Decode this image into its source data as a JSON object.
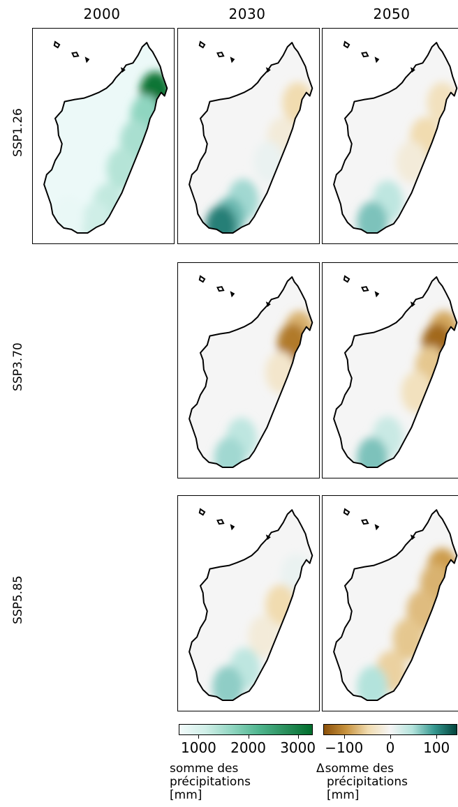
{
  "columns": [
    "2000",
    "2030",
    "2050"
  ],
  "rows": [
    "SSP1.26",
    "SSP3.70",
    "SSP5.85"
  ],
  "panels": [
    {
      "row": 0,
      "col": 0,
      "kind": "absolute",
      "hotspots": [
        {
          "lat": -15.55,
          "lon": 49.75,
          "level": 0.98
        },
        {
          "lat": -17.2,
          "lon": 49.2,
          "level": 0.55
        },
        {
          "lat": -19.0,
          "lon": 48.6,
          "level": 0.45
        },
        {
          "lat": -21.0,
          "lon": 47.8,
          "level": 0.4
        },
        {
          "lat": -23.5,
          "lon": 47.0,
          "level": 0.35
        },
        {
          "lat": -24.8,
          "lon": 46.3,
          "level": 0.3
        },
        {
          "lat": -24.4,
          "lon": 44.7,
          "level": 0.08
        }
      ]
    },
    {
      "row": 0,
      "col": 1,
      "kind": "delta",
      "hotspots": [
        {
          "lat": -16.3,
          "lon": 49.6,
          "level": -0.25
        },
        {
          "lat": -18.8,
          "lon": 48.7,
          "level": -0.1
        },
        {
          "lat": -20.5,
          "lon": 47.9,
          "level": 0.05
        },
        {
          "lat": -23.2,
          "lon": 46.4,
          "level": 0.35
        },
        {
          "lat": -24.5,
          "lon": 45.6,
          "level": 0.5
        },
        {
          "lat": -25.1,
          "lon": 45.1,
          "level": 0.75
        }
      ]
    },
    {
      "row": 0,
      "col": 2,
      "kind": "delta",
      "hotspots": [
        {
          "lat": -16.3,
          "lon": 49.6,
          "level": -0.2
        },
        {
          "lat": -18.8,
          "lon": 48.6,
          "level": -0.25
        },
        {
          "lat": -20.5,
          "lon": 47.8,
          "level": -0.1
        },
        {
          "lat": -23.3,
          "lon": 46.4,
          "level": 0.25
        },
        {
          "lat": -24.8,
          "lon": 45.5,
          "level": 0.45
        }
      ]
    },
    {
      "row": 1,
      "col": 1,
      "kind": "delta",
      "hotspots": [
        {
          "lat": -15.9,
          "lon": 49.7,
          "level": -0.45
        },
        {
          "lat": -16.8,
          "lon": 49.3,
          "level": -0.75
        },
        {
          "lat": -18.8,
          "lon": 48.6,
          "level": -0.15
        },
        {
          "lat": -23.5,
          "lon": 46.3,
          "level": 0.25
        },
        {
          "lat": -24.9,
          "lon": 45.6,
          "level": 0.35
        }
      ]
    },
    {
      "row": 1,
      "col": 2,
      "kind": "delta",
      "hotspots": [
        {
          "lat": -15.9,
          "lon": 49.7,
          "level": -0.5
        },
        {
          "lat": -16.8,
          "lon": 49.3,
          "level": -0.85
        },
        {
          "lat": -18.4,
          "lon": 48.9,
          "level": -0.35
        },
        {
          "lat": -20.2,
          "lon": 48.1,
          "level": -0.2
        },
        {
          "lat": -23.4,
          "lon": 46.4,
          "level": 0.2
        },
        {
          "lat": -24.9,
          "lon": 45.5,
          "level": 0.45
        }
      ]
    },
    {
      "row": 2,
      "col": 1,
      "kind": "delta",
      "hotspots": [
        {
          "lat": -16.6,
          "lon": 49.5,
          "level": 0.05
        },
        {
          "lat": -18.8,
          "lon": 48.6,
          "level": -0.25
        },
        {
          "lat": -21.0,
          "lon": 47.6,
          "level": -0.1
        },
        {
          "lat": -23.3,
          "lon": 46.5,
          "level": 0.25
        },
        {
          "lat": -24.6,
          "lon": 45.5,
          "level": 0.4
        }
      ]
    },
    {
      "row": 2,
      "col": 2,
      "kind": "delta",
      "hotspots": [
        {
          "lat": -16.2,
          "lon": 49.6,
          "level": -0.55
        },
        {
          "lat": -17.3,
          "lon": 49.2,
          "level": -0.45
        },
        {
          "lat": -19.2,
          "lon": 48.4,
          "level": -0.4
        },
        {
          "lat": -21.2,
          "lon": 47.6,
          "level": -0.35
        },
        {
          "lat": -23.5,
          "lon": 46.6,
          "level": -0.3
        },
        {
          "lat": -24.6,
          "lon": 45.5,
          "level": 0.3
        }
      ]
    }
  ],
  "colorbars": {
    "absolute": {
      "ticks": [
        "1000",
        "2000",
        "3000"
      ],
      "tick_values": [
        1000,
        2000,
        3000
      ],
      "range": [
        600,
        3300
      ],
      "label": [
        "somme des",
        "précipitations",
        "[mm]"
      ],
      "colors": [
        "#f2fbfb",
        "#cfeee7",
        "#8fd5c0",
        "#4fb58e",
        "#2a8f5c",
        "#006d2c"
      ]
    },
    "delta": {
      "ticks": [
        "−100",
        "0",
        "100"
      ],
      "tick_values": [
        -100,
        0,
        100
      ],
      "range": [
        -145,
        145
      ],
      "symbol": "Δ",
      "label": [
        "somme des",
        "précipitations",
        "[mm]"
      ],
      "colors": [
        "#8c510a",
        "#c7923e",
        "#f1dcb0",
        "#f5f5f5",
        "#b3e3dc",
        "#35978f",
        "#01433b"
      ]
    }
  }
}
